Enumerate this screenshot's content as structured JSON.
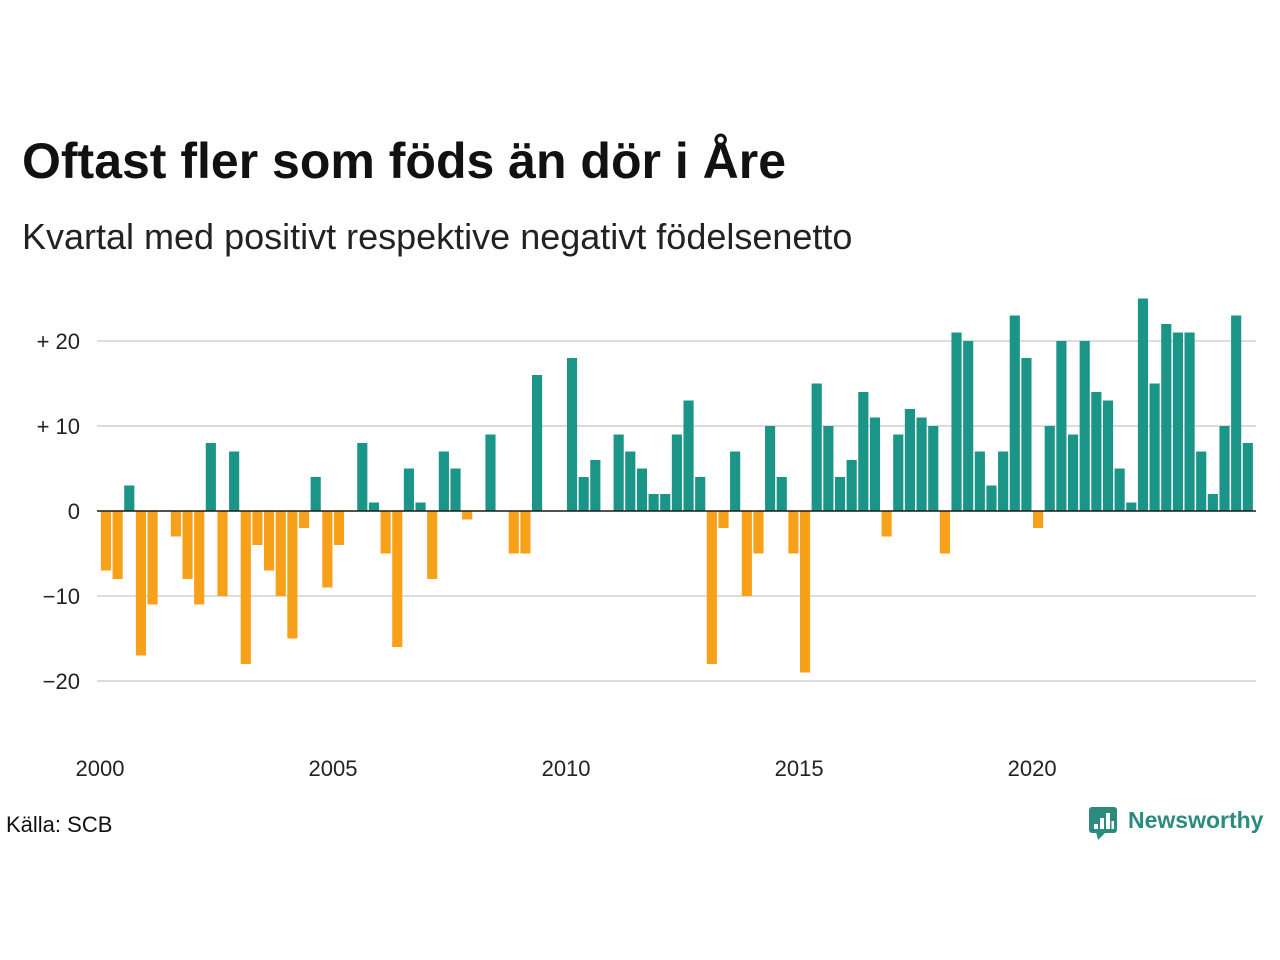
{
  "source": "Källa: SCB",
  "logo": {
    "text": "Newsworthy",
    "icon": "newsworthy-logo-icon",
    "color": "#2b8c7e"
  },
  "chart_data": {
    "type": "bar",
    "title": "Oftast fler som föds än dör i Åre",
    "subtitle": "Kvartal med positivt respektive negativt födelsenetto",
    "x": [
      "2000-Q1",
      "2000-Q2",
      "2000-Q3",
      "2000-Q4",
      "2001-Q1",
      "2001-Q2",
      "2001-Q3",
      "2001-Q4",
      "2002-Q1",
      "2002-Q2",
      "2002-Q3",
      "2002-Q4",
      "2003-Q1",
      "2003-Q2",
      "2003-Q3",
      "2003-Q4",
      "2004-Q1",
      "2004-Q2",
      "2004-Q3",
      "2004-Q4",
      "2005-Q1",
      "2005-Q2",
      "2005-Q3",
      "2005-Q4",
      "2006-Q1",
      "2006-Q2",
      "2006-Q3",
      "2006-Q4",
      "2007-Q1",
      "2007-Q2",
      "2007-Q3",
      "2007-Q4",
      "2008-Q1",
      "2008-Q2",
      "2008-Q3",
      "2008-Q4",
      "2009-Q1",
      "2009-Q2",
      "2009-Q3",
      "2009-Q4",
      "2010-Q1",
      "2010-Q2",
      "2010-Q3",
      "2010-Q4",
      "2011-Q1",
      "2011-Q2",
      "2011-Q3",
      "2011-Q4",
      "2012-Q1",
      "2012-Q2",
      "2012-Q3",
      "2012-Q4",
      "2013-Q1",
      "2013-Q2",
      "2013-Q3",
      "2013-Q4",
      "2014-Q1",
      "2014-Q2",
      "2014-Q3",
      "2014-Q4",
      "2015-Q1",
      "2015-Q2",
      "2015-Q3",
      "2015-Q4",
      "2016-Q1",
      "2016-Q2",
      "2016-Q3",
      "2016-Q4",
      "2017-Q1",
      "2017-Q2",
      "2017-Q3",
      "2017-Q4",
      "2018-Q1",
      "2018-Q2",
      "2018-Q3",
      "2018-Q4",
      "2019-Q1",
      "2019-Q2",
      "2019-Q3",
      "2019-Q4",
      "2020-Q1",
      "2020-Q2",
      "2020-Q3",
      "2020-Q4",
      "2021-Q1",
      "2021-Q2",
      "2021-Q3",
      "2021-Q4",
      "2022-Q1",
      "2022-Q2",
      "2022-Q3",
      "2022-Q4",
      "2023-Q1",
      "2023-Q2",
      "2023-Q3",
      "2023-Q4",
      "2024-Q1",
      "2024-Q2",
      "2024-Q3"
    ],
    "values": [
      -7,
      -8,
      3,
      -17,
      -11,
      0,
      -3,
      -8,
      -11,
      8,
      -10,
      7,
      -18,
      -4,
      -7,
      -10,
      -15,
      -2,
      4,
      -9,
      -4,
      0,
      8,
      1,
      -5,
      -16,
      5,
      1,
      -8,
      7,
      5,
      -1,
      0,
      9,
      0,
      -5,
      -5,
      16,
      0,
      0,
      18,
      4,
      6,
      0,
      9,
      7,
      5,
      2,
      2,
      9,
      13,
      4,
      -18,
      -2,
      7,
      -10,
      -5,
      10,
      4,
      -5,
      -19,
      15,
      10,
      4,
      6,
      14,
      11,
      -3,
      9,
      12,
      11,
      10,
      -5,
      21,
      20,
      7,
      3,
      7,
      23,
      18,
      -2,
      10,
      20,
      9,
      20,
      14,
      13,
      5,
      1,
      25,
      15,
      22,
      21,
      21,
      7,
      2,
      10,
      23,
      8
    ],
    "xticks": [
      "2000",
      "2005",
      "2010",
      "2015",
      "2020"
    ],
    "yticks": [
      {
        "value": 20,
        "label": "+ 20"
      },
      {
        "value": 10,
        "label": "+ 10"
      },
      {
        "value": 0,
        "label": "0"
      },
      {
        "value": -10,
        "label": "−10"
      },
      {
        "value": -20,
        "label": "−20"
      }
    ],
    "ylim": [
      -27,
      26
    ],
    "grid": true,
    "colors": {
      "positive": "#1b9587",
      "negative": "#f7a11b",
      "grid": "#dcdcdc",
      "zero_line": "#1a1a1a"
    }
  }
}
